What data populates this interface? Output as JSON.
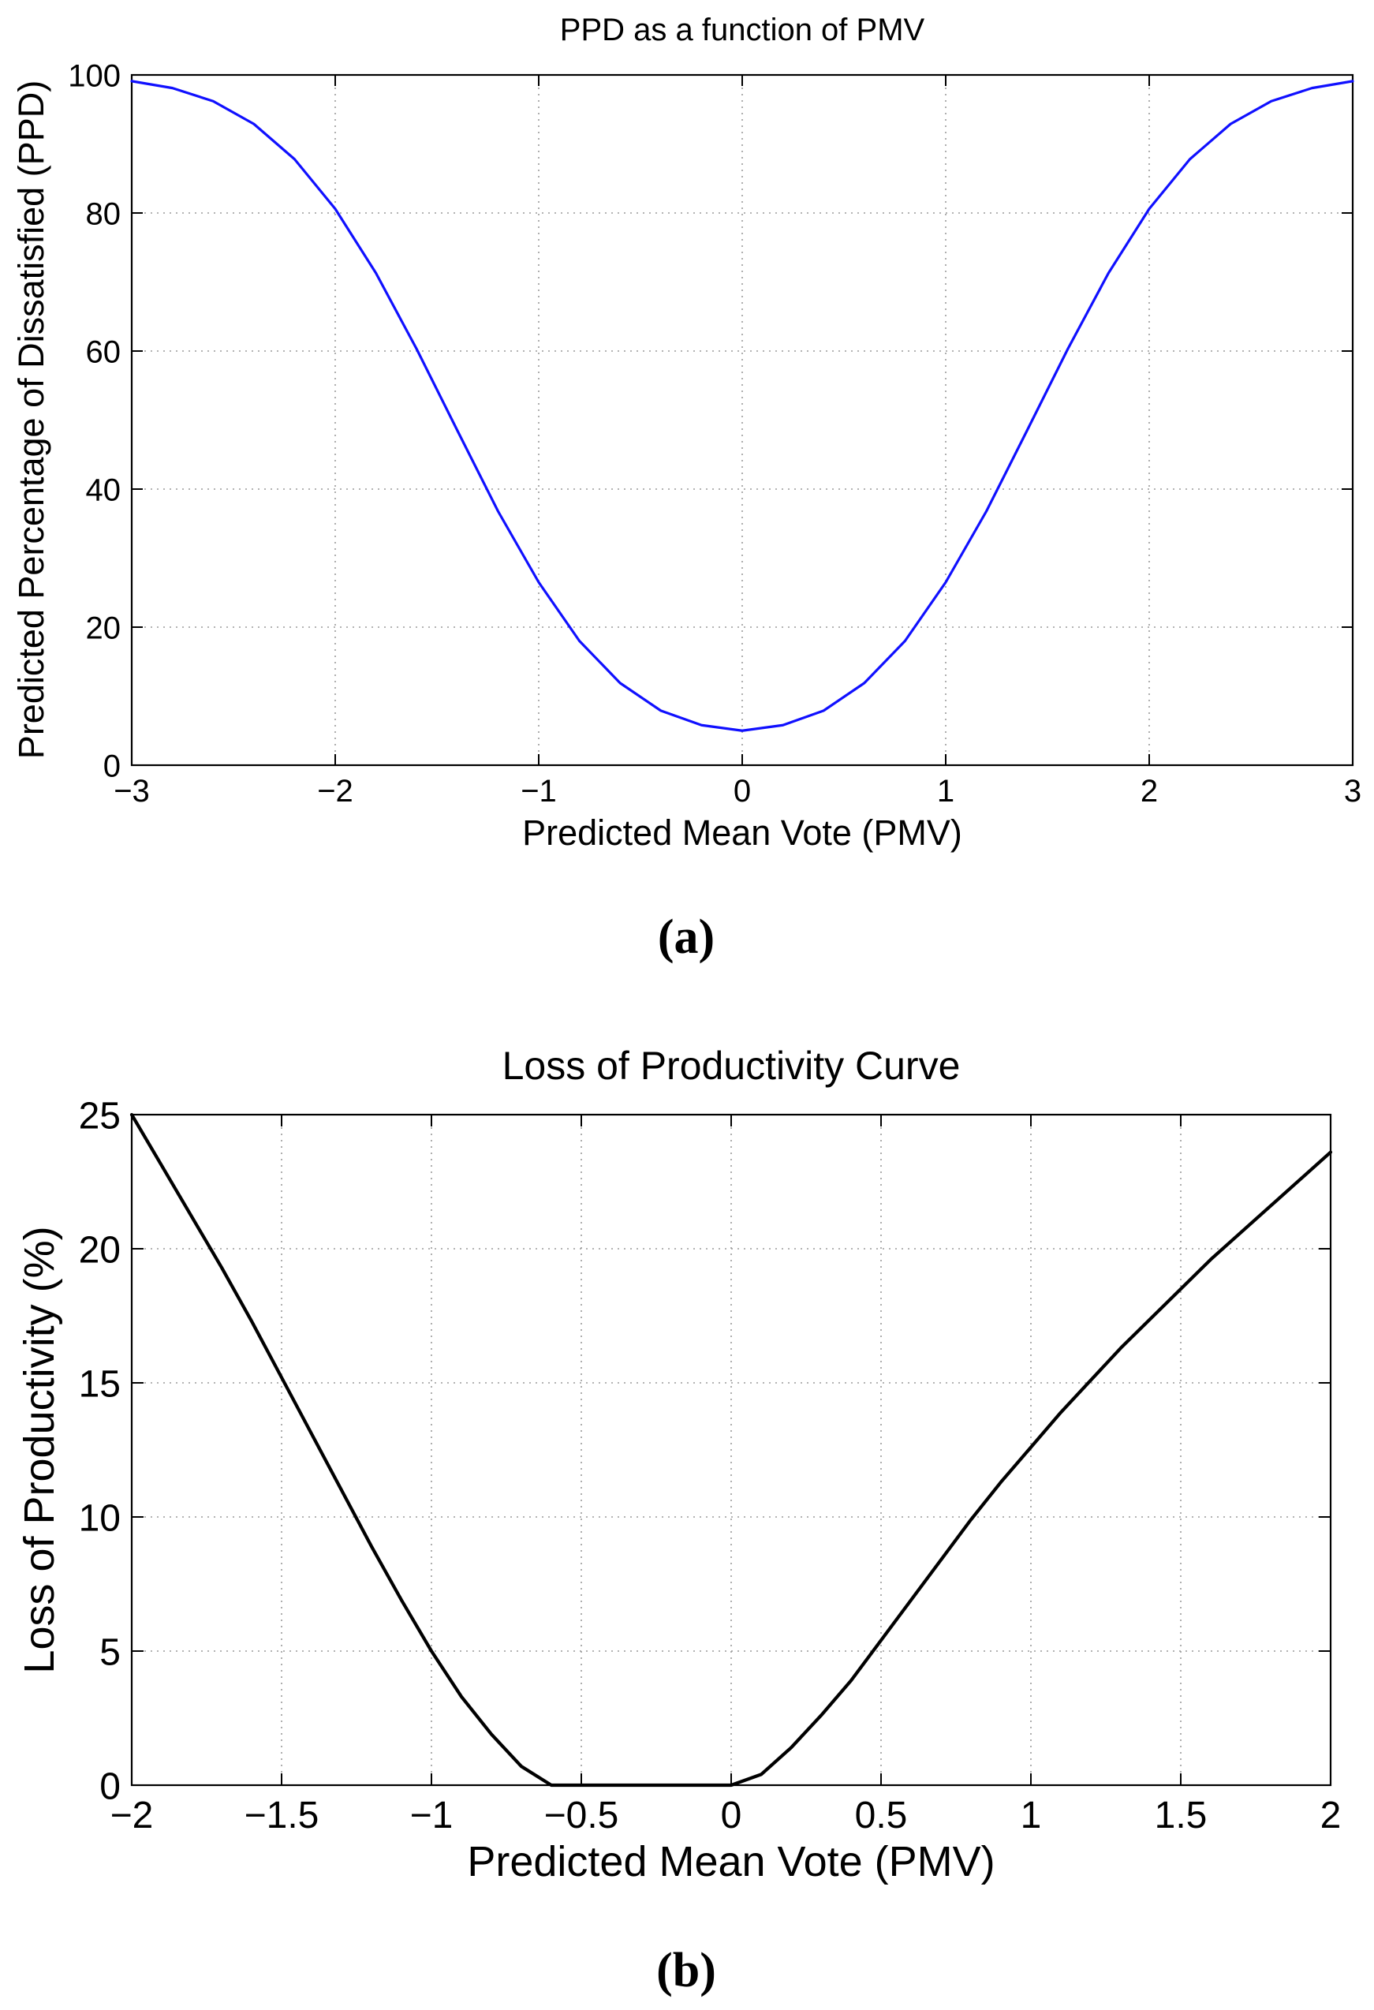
{
  "chart_data": [
    {
      "type": "line",
      "title": "PPD as a function of PMV",
      "xlabel": "Predicted Mean Vote (PMV)",
      "ylabel": "Predicted Percentage of Dissatisfied (PPD)",
      "xlim": [
        -3,
        3
      ],
      "ylim": [
        0,
        100
      ],
      "grid": true,
      "xticks": [
        -3,
        -2,
        -1,
        0,
        1,
        2,
        3
      ],
      "xtick_labels": [
        "−3",
        "−2",
        "−1",
        "0",
        "1",
        "2",
        "3"
      ],
      "yticks": [
        0,
        20,
        40,
        60,
        80,
        100
      ],
      "ytick_labels": [
        "0",
        "20",
        "40",
        "60",
        "80",
        "100"
      ],
      "caption": "(a)",
      "series": [
        {
          "name": "PPD",
          "color": "#1010ff",
          "x": [
            -3.0,
            -2.8,
            -2.6,
            -2.4,
            -2.2,
            -2.0,
            -1.8,
            -1.6,
            -1.4,
            -1.2,
            -1.0,
            -0.8,
            -0.6,
            -0.4,
            -0.2,
            0.0,
            0.2,
            0.4,
            0.6,
            0.8,
            1.0,
            1.2,
            1.4,
            1.6,
            1.8,
            2.0,
            2.2,
            2.4,
            2.6,
            2.8,
            3.0
          ],
          "y": [
            99.1,
            98.1,
            96.2,
            92.9,
            87.8,
            80.6,
            71.3,
            60.3,
            48.5,
            36.8,
            26.5,
            18.0,
            11.9,
            7.9,
            5.8,
            5.0,
            5.8,
            7.9,
            11.9,
            18.0,
            26.5,
            36.8,
            48.5,
            60.3,
            71.3,
            80.6,
            87.8,
            92.9,
            96.2,
            98.1,
            99.1
          ]
        }
      ]
    },
    {
      "type": "line",
      "title": "Loss of Productivity Curve",
      "xlabel": "Predicted Mean Vote (PMV)",
      "ylabel": "Loss of Productivity (%)",
      "xlim": [
        -2,
        2
      ],
      "ylim": [
        0,
        25
      ],
      "grid": true,
      "xticks": [
        -2,
        -1.5,
        -1,
        -0.5,
        0,
        0.5,
        1,
        1.5,
        2
      ],
      "xtick_labels": [
        "−2",
        "−1.5",
        "−1",
        "−0.5",
        "0",
        "0.5",
        "1",
        "1.5",
        "2"
      ],
      "yticks": [
        0,
        5,
        10,
        15,
        20,
        25
      ],
      "ytick_labels": [
        "0",
        "5",
        "10",
        "15",
        "20",
        "25"
      ],
      "caption": "(b)",
      "series": [
        {
          "name": "Loss of Productivity",
          "color": "#000000",
          "x": [
            -2.0,
            -1.9,
            -1.8,
            -1.7,
            -1.6,
            -1.5,
            -1.4,
            -1.3,
            -1.2,
            -1.1,
            -1.0,
            -0.9,
            -0.8,
            -0.7,
            -0.6,
            -0.5,
            -0.4,
            -0.3,
            -0.2,
            -0.1,
            0.0,
            0.1,
            0.2,
            0.3,
            0.4,
            0.5,
            0.6,
            0.7,
            0.8,
            0.9,
            1.0,
            1.1,
            1.2,
            1.3,
            1.4,
            1.5,
            1.6,
            1.7,
            1.8,
            1.9,
            2.0
          ],
          "y": [
            25.0,
            23.1,
            21.2,
            19.3,
            17.3,
            15.2,
            13.1,
            11.0,
            8.9,
            6.9,
            5.0,
            3.3,
            1.9,
            0.7,
            0.0,
            0.0,
            0.0,
            0.0,
            0.0,
            0.0,
            0.0,
            0.4,
            1.4,
            2.6,
            3.9,
            5.4,
            6.9,
            8.4,
            9.9,
            11.3,
            12.6,
            13.9,
            15.1,
            16.3,
            17.4,
            18.5,
            19.6,
            20.6,
            21.6,
            22.6,
            23.6
          ]
        }
      ]
    }
  ]
}
